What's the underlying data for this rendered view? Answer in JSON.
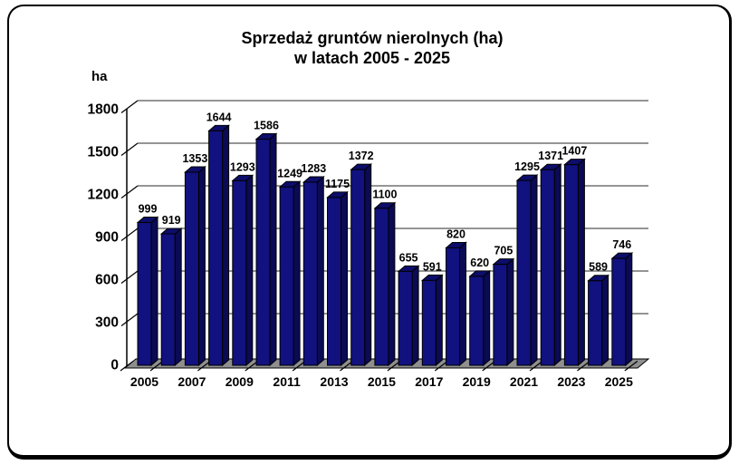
{
  "title": "Sprzedaż gruntów nierolnych (ha)",
  "subtitle": "w latach 2005 - 2025",
  "chart_data": {
    "type": "bar",
    "title": "Sprzedaż gruntów nierolnych (ha)",
    "subtitle": "w latach 2005 - 2025",
    "ylabel": "ha",
    "x": [
      2005,
      2006,
      2007,
      2008,
      2009,
      2010,
      2011,
      2012,
      2013,
      2014,
      2015,
      2016,
      2017,
      2018,
      2019,
      2020,
      2021,
      2022,
      2023,
      2024,
      2025
    ],
    "values": [
      999,
      919,
      1353,
      1644,
      1293,
      1586,
      1249,
      1283,
      1175,
      1372,
      1100,
      655,
      591,
      820,
      620,
      705,
      1295,
      1371,
      1407,
      589,
      746
    ],
    "xtick_labels": [
      "2005",
      "2007",
      "2009",
      "2011",
      "2013",
      "2015",
      "2017",
      "2019",
      "2021",
      "2023",
      "2025"
    ],
    "yticks": [
      0,
      300,
      600,
      900,
      1200,
      1500,
      1800
    ],
    "ylim": [
      0,
      1800
    ],
    "grid": true,
    "legend": null,
    "style_3d": true,
    "colors": {
      "bar_front": "#11117f",
      "bar_top": "#0d0d6b",
      "bar_side": "#0a0a55",
      "bar_outline": "#000000",
      "floor": "#8f8f8f",
      "gridline": "#2b2b2b",
      "axis": "#000000",
      "text": "#000000",
      "background": "#ffffff",
      "frame_border": "#000000"
    }
  }
}
